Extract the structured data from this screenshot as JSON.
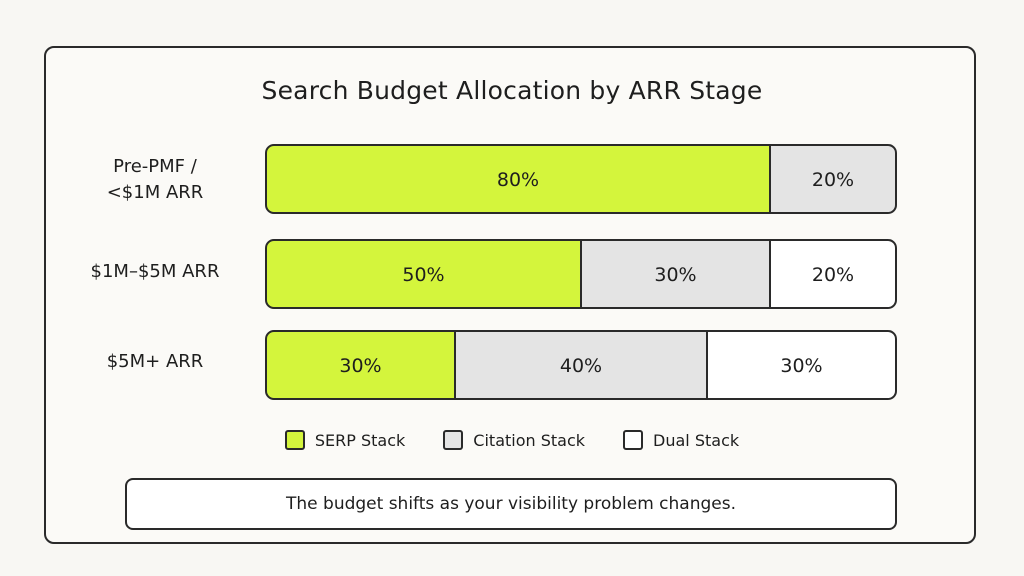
{
  "chart_data": {
    "type": "bar",
    "orientation": "horizontal",
    "stacked": true,
    "title": "Search Budget Allocation by ARR Stage",
    "categories": [
      "Pre-PMF /\n<$1M ARR",
      "$1M–$5M ARR",
      "$5M+ ARR"
    ],
    "series": [
      {
        "name": "SERP Stack",
        "color": "#d4f53c",
        "values": [
          80,
          50,
          30
        ]
      },
      {
        "name": "Citation Stack",
        "color": "#e4e4e4",
        "values": [
          20,
          30,
          40
        ]
      },
      {
        "name": "Dual Stack",
        "color": "#ffffff",
        "values": [
          0,
          20,
          30
        ]
      }
    ],
    "value_labels": [
      [
        "80%",
        "20%",
        ""
      ],
      [
        "50%",
        "30%",
        "20%"
      ],
      [
        "30%",
        "40%",
        "30%"
      ]
    ],
    "xlim": [
      0,
      100
    ],
    "grid": false,
    "legend_position": "bottom",
    "caption": "The budget shifts as your visibility problem changes."
  }
}
